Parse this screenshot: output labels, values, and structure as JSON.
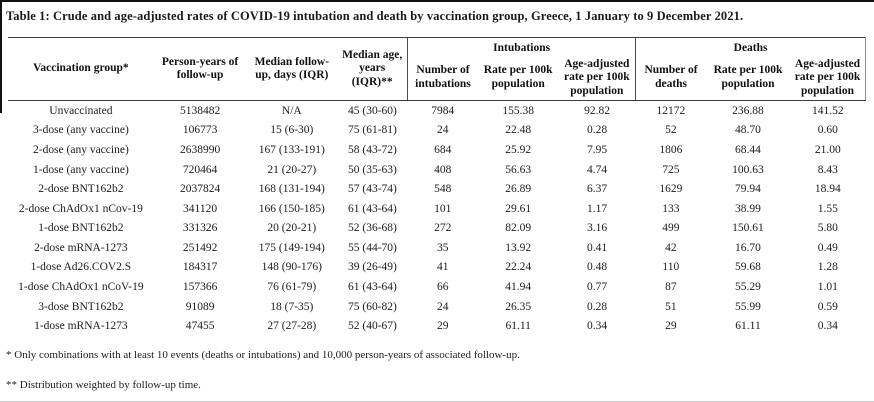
{
  "title": "Table 1: Crude and age-adjusted rates of COVID-19 intubation and death by vaccination group, Greece, 1 January to 9 December 2021.",
  "table": {
    "row_headers": [
      "Vaccination group*",
      "Person-years of follow-up",
      "Median follow-up, days (IQR)",
      "Median age, years (IQR)**"
    ],
    "group_headers": {
      "intubations": "Intubations",
      "deaths": "Deaths"
    },
    "intubation_columns": [
      "Number of intubations",
      "Rate per 100k population",
      "Age-adjusted rate per 100k population"
    ],
    "death_columns": [
      "Number of deaths",
      "Rate per 100k population",
      "Age-adjusted rate per 100k population"
    ],
    "rows": [
      [
        "Unvaccinated",
        "5138482",
        "N/A",
        "45 (30-60)",
        "7984",
        "155.38",
        "92.82",
        "12172",
        "236.88",
        "141.52"
      ],
      [
        "3-dose (any vaccine)",
        "106773",
        "15 (6-30)",
        "75 (61-81)",
        "24",
        "22.48",
        "0.28",
        "52",
        "48.70",
        "0.60"
      ],
      [
        "2-dose (any vaccine)",
        "2638990",
        "167 (133-191)",
        "58 (43-72)",
        "684",
        "25.92",
        "7.95",
        "1806",
        "68.44",
        "21.00"
      ],
      [
        "1-dose (any vaccine)",
        "720464",
        "21 (20-27)",
        "50 (35-63)",
        "408",
        "56.63",
        "4.74",
        "725",
        "100.63",
        "8.43"
      ],
      [
        "2-dose BNT162b2",
        "2037824",
        "168 (131-194)",
        "57 (43-74)",
        "548",
        "26.89",
        "6.37",
        "1629",
        "79.94",
        "18.94"
      ],
      [
        "2-dose ChAdOx1 nCov-19",
        "341120",
        "166 (150-185)",
        "61 (43-64)",
        "101",
        "29.61",
        "1.17",
        "133",
        "38.99",
        "1.55"
      ],
      [
        "1-dose BNT162b2",
        "331326",
        "20 (20-21)",
        "52 (36-68)",
        "272",
        "82.09",
        "3.16",
        "499",
        "150.61",
        "5.80"
      ],
      [
        "2-dose mRNA-1273",
        "251492",
        "175 (149-194)",
        "55 (44-70)",
        "35",
        "13.92",
        "0.41",
        "42",
        "16.70",
        "0.49"
      ],
      [
        "1-dose Ad26.COV2.S",
        "184317",
        "148 (90-176)",
        "39 (26-49)",
        "41",
        "22.24",
        "0.48",
        "110",
        "59.68",
        "1.28"
      ],
      [
        "1-dose ChAdOx1 nCoV-19",
        "157366",
        "76 (61-79)",
        "61 (43-64)",
        "66",
        "41.94",
        "0.77",
        "87",
        "55.29",
        "1.01"
      ],
      [
        "3-dose BNT162b2",
        "91089",
        "18 (7-35)",
        "75 (60-82)",
        "24",
        "26.35",
        "0.28",
        "51",
        "55.99",
        "0.59"
      ],
      [
        "1-dose mRNA-1273",
        "47455",
        "27 (27-28)",
        "52 (40-67)",
        "29",
        "61.11",
        "0.34",
        "29",
        "61.11",
        "0.34"
      ]
    ]
  },
  "footnotes": [
    "* Only combinations with at least 10 events (deaths or intubations) and 10,000 person-years of associated follow-up.",
    "** Distribution weighted by follow-up time."
  ]
}
